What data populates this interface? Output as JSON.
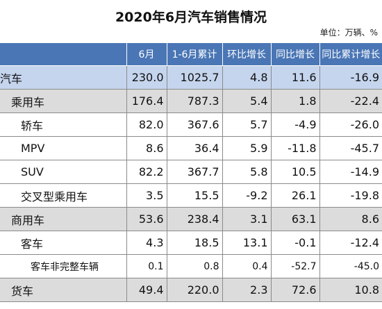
{
  "title": "2020年6月汽车销售情况",
  "unit": "单位：万辆、%",
  "chart_data": {
    "type": "table",
    "columns": [
      "",
      "6月",
      "1-6月累计",
      "环比增长",
      "同比增长",
      "同比累计增长"
    ],
    "rows": [
      {
        "name": "汽车",
        "level": 0,
        "values": [
          "230.0",
          "1025.7",
          "4.8",
          "11.6",
          "-16.9"
        ]
      },
      {
        "name": "乘用车",
        "level": 1,
        "values": [
          "176.4",
          "787.3",
          "5.4",
          "1.8",
          "-22.4"
        ]
      },
      {
        "name": "轿车",
        "level": 2,
        "values": [
          "82.0",
          "367.6",
          "5.7",
          "-4.9",
          "-26.0"
        ]
      },
      {
        "name": "MPV",
        "level": 2,
        "values": [
          "8.6",
          "36.4",
          "5.9",
          "-11.8",
          "-45.7"
        ]
      },
      {
        "name": "SUV",
        "level": 2,
        "values": [
          "82.2",
          "367.7",
          "5.8",
          "10.5",
          "-14.9"
        ]
      },
      {
        "name": "交叉型乘用车",
        "level": 2,
        "values": [
          "3.5",
          "15.5",
          "-9.2",
          "26.1",
          "-19.8"
        ]
      },
      {
        "name": "商用车",
        "level": 1,
        "values": [
          "53.6",
          "238.4",
          "3.1",
          "63.1",
          "8.6"
        ]
      },
      {
        "name": "客车",
        "level": 2,
        "values": [
          "4.3",
          "18.5",
          "13.1",
          "-0.1",
          "-12.4"
        ]
      },
      {
        "name": "客车非完整车辆",
        "level": 3,
        "values": [
          "0.1",
          "0.8",
          "0.4",
          "-52.7",
          "-45.0"
        ]
      },
      {
        "name": "货车",
        "level": 1,
        "values": [
          "49.4",
          "220.0",
          "2.3",
          "72.6",
          "10.8"
        ]
      }
    ]
  }
}
